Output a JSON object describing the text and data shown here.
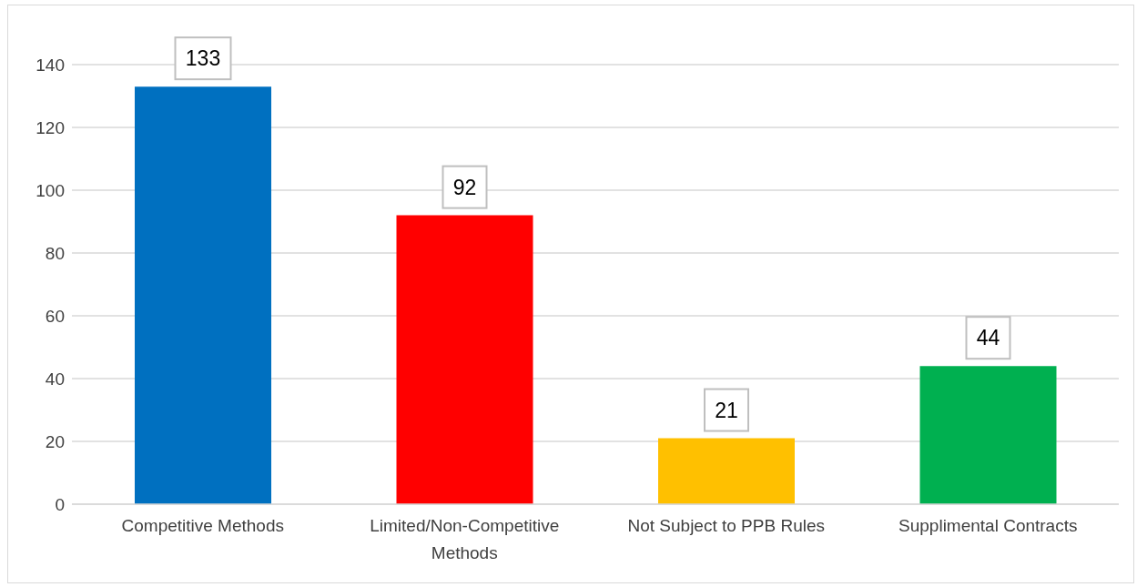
{
  "chart_data": {
    "type": "bar",
    "categories": [
      "Competitive Methods",
      "Limited/Non-Competitive Methods",
      "Not Subject to PPB Rules",
      "Supplimental Contracts"
    ],
    "values": [
      133,
      92,
      21,
      44
    ],
    "colors": [
      "#0070c0",
      "#ff0000",
      "#ffc000",
      "#00b050"
    ],
    "ylim": [
      0,
      140
    ],
    "yticks": [
      0,
      20,
      40,
      60,
      80,
      100,
      120,
      140
    ],
    "grid": "y",
    "data_labels": true
  }
}
